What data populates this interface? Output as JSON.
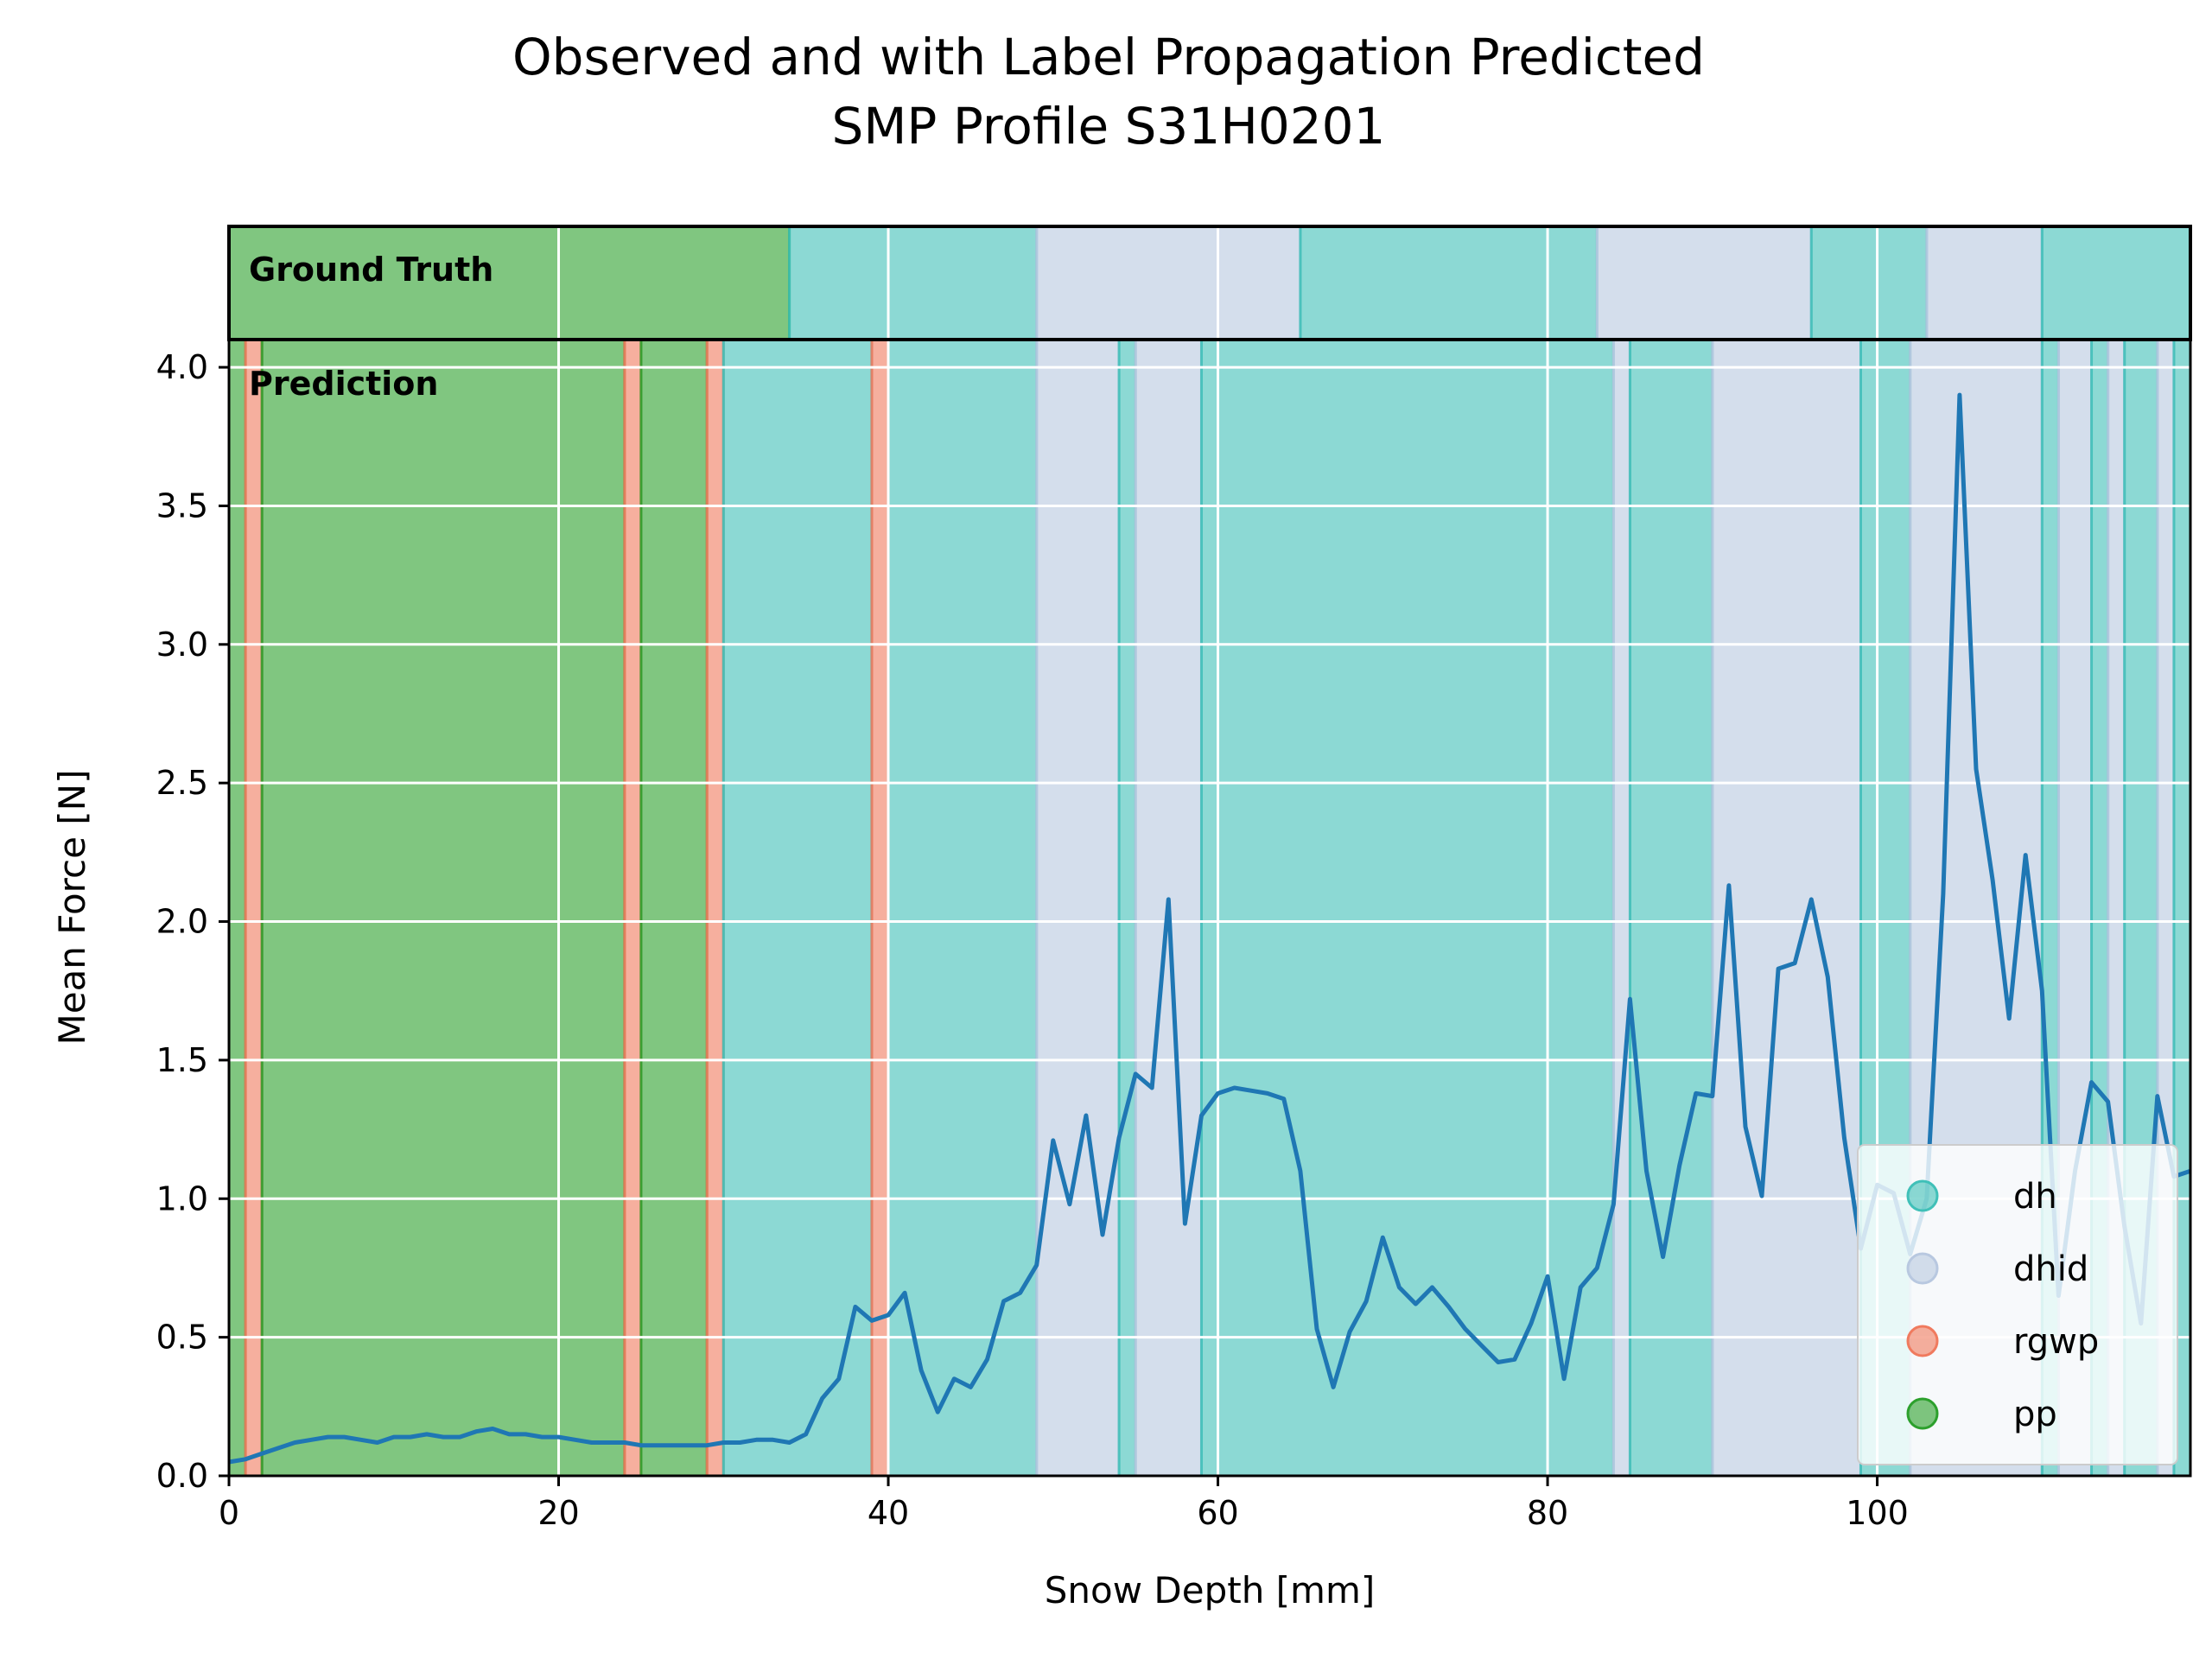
{
  "chart_data": {
    "type": "line",
    "title": "Observed and with Label Propagation Predicted",
    "subtitle": "SMP Profile S31H0201",
    "xlabel": "Snow Depth [mm]",
    "ylabel": "Mean Force [N]",
    "xlim": [
      0,
      119
    ],
    "ylim": [
      0,
      4.1
    ],
    "xticks": [
      0,
      20,
      40,
      60,
      80,
      100
    ],
    "yticks": [
      0.0,
      0.5,
      1.0,
      1.5,
      2.0,
      2.5,
      3.0,
      3.5,
      4.0
    ],
    "grid": true,
    "legend_position": "lower-right",
    "line_color": "#1f77b4",
    "panel_labels": {
      "ground_truth": "Ground Truth",
      "prediction": "Prediction"
    },
    "classes": [
      {
        "name": "dh",
        "color": "#40c0b8"
      },
      {
        "name": "dhid",
        "color": "#b8c8e0"
      },
      {
        "name": "rgwp",
        "color": "#f07a5e"
      },
      {
        "name": "pp",
        "color": "#2ca02c"
      }
    ],
    "ground_truth_segments": [
      {
        "start": 0,
        "end": 34,
        "label": "pp"
      },
      {
        "start": 34,
        "end": 49,
        "label": "dh"
      },
      {
        "start": 49,
        "end": 65,
        "label": "dhid"
      },
      {
        "start": 65,
        "end": 83,
        "label": "dh"
      },
      {
        "start": 83,
        "end": 96,
        "label": "dhid"
      },
      {
        "start": 96,
        "end": 103,
        "label": "dh"
      },
      {
        "start": 103,
        "end": 110,
        "label": "dhid"
      },
      {
        "start": 110,
        "end": 119,
        "label": "dh"
      }
    ],
    "prediction_segments": [
      {
        "start": 0,
        "end": 1,
        "label": "pp"
      },
      {
        "start": 1,
        "end": 2,
        "label": "rgwp"
      },
      {
        "start": 2,
        "end": 24,
        "label": "pp"
      },
      {
        "start": 24,
        "end": 25,
        "label": "rgwp"
      },
      {
        "start": 25,
        "end": 29,
        "label": "pp"
      },
      {
        "start": 29,
        "end": 30,
        "label": "rgwp"
      },
      {
        "start": 30,
        "end": 39,
        "label": "dh"
      },
      {
        "start": 39,
        "end": 40,
        "label": "rgwp"
      },
      {
        "start": 40,
        "end": 49,
        "label": "dh"
      },
      {
        "start": 49,
        "end": 54,
        "label": "dhid"
      },
      {
        "start": 54,
        "end": 55,
        "label": "dh"
      },
      {
        "start": 55,
        "end": 59,
        "label": "dhid"
      },
      {
        "start": 59,
        "end": 84,
        "label": "dh"
      },
      {
        "start": 84,
        "end": 85,
        "label": "dhid"
      },
      {
        "start": 85,
        "end": 90,
        "label": "dh"
      },
      {
        "start": 90,
        "end": 99,
        "label": "dhid"
      },
      {
        "start": 99,
        "end": 102,
        "label": "dh"
      },
      {
        "start": 102,
        "end": 110,
        "label": "dhid"
      },
      {
        "start": 110,
        "end": 111,
        "label": "dh"
      },
      {
        "start": 111,
        "end": 113,
        "label": "dhid"
      },
      {
        "start": 113,
        "end": 114,
        "label": "dh"
      },
      {
        "start": 114,
        "end": 115,
        "label": "dhid"
      },
      {
        "start": 115,
        "end": 117,
        "label": "dh"
      },
      {
        "start": 117,
        "end": 118,
        "label": "dhid"
      },
      {
        "start": 118,
        "end": 119,
        "label": "dh"
      }
    ],
    "series": [
      {
        "x": [
          0,
          1,
          2,
          3,
          4,
          5,
          6,
          7,
          8,
          9,
          10,
          11,
          12,
          13,
          14,
          15,
          16,
          17,
          18,
          19,
          20,
          21,
          22,
          23,
          24,
          25,
          26,
          27,
          28,
          29,
          30,
          31,
          32,
          33,
          34,
          35,
          36,
          37,
          38,
          39,
          40,
          41,
          42,
          43,
          44,
          45,
          46,
          47,
          48,
          49,
          50,
          51,
          52,
          53,
          54,
          55,
          56,
          57,
          58,
          59,
          60,
          61,
          62,
          63,
          64,
          65,
          66,
          67,
          68,
          69,
          70,
          71,
          72,
          73,
          74,
          75,
          76,
          77,
          78,
          79,
          80,
          81,
          82,
          83,
          84,
          85,
          86,
          87,
          88,
          89,
          90,
          91,
          92,
          93,
          94,
          95,
          96,
          97,
          98,
          99,
          100,
          101,
          102,
          103,
          104,
          105,
          106,
          107,
          108,
          109,
          110,
          111,
          112,
          113,
          114,
          115,
          116,
          117,
          118,
          119
        ],
        "y": [
          0.05,
          0.06,
          0.08,
          0.1,
          0.12,
          0.13,
          0.14,
          0.14,
          0.13,
          0.12,
          0.14,
          0.14,
          0.15,
          0.14,
          0.14,
          0.16,
          0.17,
          0.15,
          0.15,
          0.14,
          0.14,
          0.13,
          0.12,
          0.12,
          0.12,
          0.11,
          0.11,
          0.11,
          0.11,
          0.11,
          0.12,
          0.12,
          0.13,
          0.13,
          0.12,
          0.15,
          0.28,
          0.35,
          0.61,
          0.56,
          0.58,
          0.66,
          0.38,
          0.23,
          0.35,
          0.32,
          0.42,
          0.63,
          0.66,
          0.76,
          1.21,
          0.98,
          1.3,
          0.87,
          1.22,
          1.45,
          1.4,
          2.08,
          0.91,
          1.3,
          1.38,
          1.4,
          1.39,
          1.38,
          1.36,
          1.1,
          0.53,
          0.32,
          0.52,
          0.63,
          0.86,
          0.68,
          0.62,
          0.68,
          0.61,
          0.53,
          0.47,
          0.41,
          0.42,
          0.55,
          0.72,
          0.35,
          0.68,
          0.75,
          0.98,
          1.72,
          1.1,
          0.79,
          1.12,
          1.38,
          1.37,
          2.13,
          1.26,
          1.01,
          1.83,
          1.85,
          2.08,
          1.8,
          1.22,
          0.82,
          1.05,
          1.02,
          0.8,
          1.0,
          2.1,
          3.9,
          2.55,
          2.15,
          1.65,
          2.24,
          1.75,
          0.65,
          1.1,
          1.42,
          1.35,
          0.9,
          0.55,
          1.37,
          1.08,
          1.1
        ]
      }
    ]
  }
}
